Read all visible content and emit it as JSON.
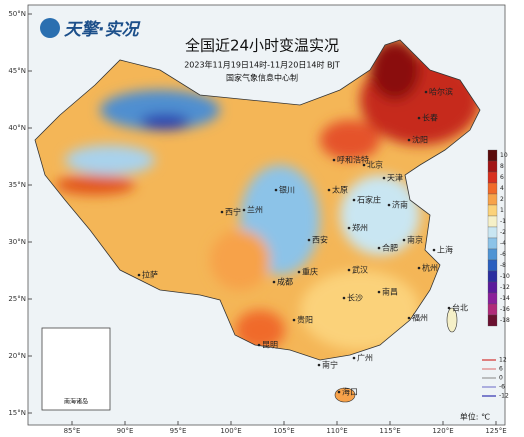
{
  "header": {
    "logo": "天擎·实况",
    "title": "全国近24小时变温实况",
    "subtitle": "2023年11月19日14时-11月20日14时 BJT",
    "source": "国家气象信息中心制"
  },
  "map": {
    "lat_labels": [
      "50°N",
      "45°N",
      "40°N",
      "35°N",
      "30°N",
      "25°N",
      "20°N",
      "15°N"
    ],
    "lon_labels": [
      "85°E",
      "90°E",
      "95°E",
      "100°E",
      "105°E",
      "110°E",
      "115°E",
      "120°E",
      "125°E"
    ],
    "cities": [
      "哈尔滨",
      "长春",
      "沈阳",
      "北京",
      "天津",
      "呼和浩特",
      "太原",
      "石家庄",
      "济南",
      "郑州",
      "西安",
      "兰州",
      "西宁",
      "银川",
      "拉萨",
      "成都",
      "重庆",
      "贵阳",
      "昆明",
      "南宁",
      "广州",
      "海口",
      "长沙",
      "武汉",
      "南昌",
      "合肥",
      "南京",
      "上海",
      "杭州",
      "福州",
      "台北"
    ],
    "inset_label": "南海诸岛"
  },
  "legend": {
    "levels": [
      {
        "label": "10",
        "color": "#5a0a0a"
      },
      {
        "label": "8",
        "color": "#a11515"
      },
      {
        "label": "6",
        "color": "#d7301f"
      },
      {
        "label": "4",
        "color": "#f06a2a"
      },
      {
        "label": "2",
        "color": "#f7a24a"
      },
      {
        "label": "1",
        "color": "#fbd27a"
      },
      {
        "label": "-1",
        "color": "#f5f0c8"
      },
      {
        "label": "-2",
        "color": "#c9e6f2"
      },
      {
        "label": "-4",
        "color": "#8cc3e8"
      },
      {
        "label": "-6",
        "color": "#4f94d4"
      },
      {
        "label": "-8",
        "color": "#2a5fbf"
      },
      {
        "label": "-10",
        "color": "#2b2ea0"
      },
      {
        "label": "-12",
        "color": "#5a1a9c"
      },
      {
        "label": "-14",
        "color": "#8a1f9a"
      },
      {
        "label": "-16",
        "color": "#b02a7a"
      },
      {
        "label": "-18",
        "color": "#6a1030"
      }
    ],
    "contours": [
      {
        "label": "12",
        "color": "#d43030"
      },
      {
        "label": "6",
        "color": "#e08080"
      },
      {
        "label": "0",
        "color": "#999999"
      },
      {
        "label": "-6",
        "color": "#8080d0"
      },
      {
        "label": "-12",
        "color": "#3030b0"
      }
    ],
    "unit": "单位: ℃"
  }
}
